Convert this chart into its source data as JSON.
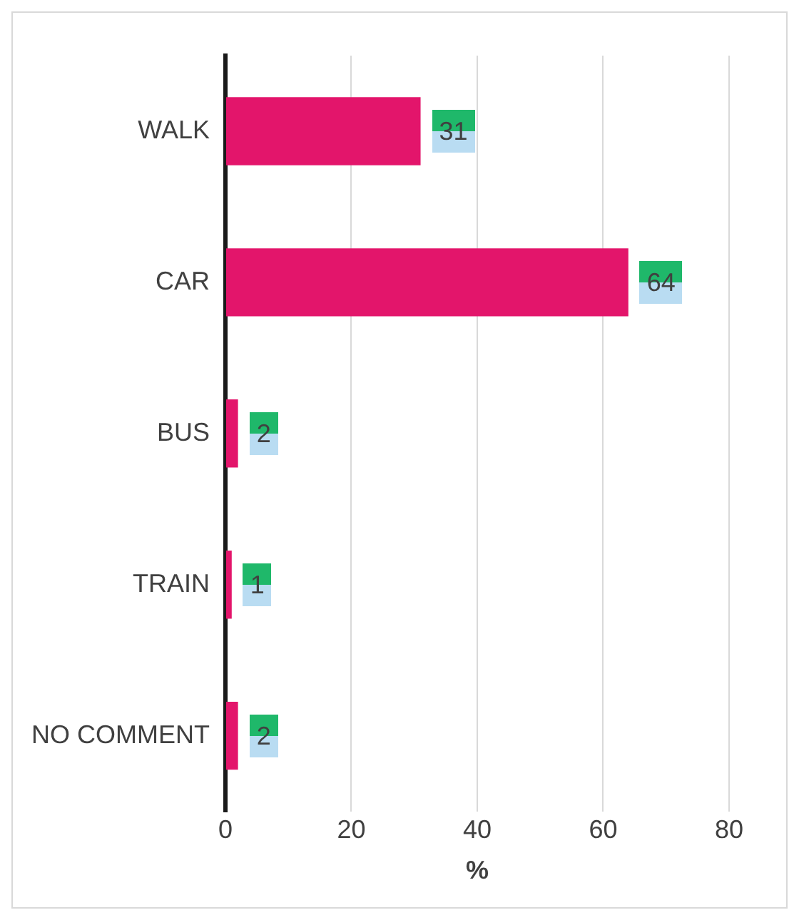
{
  "chart_data": {
    "type": "bar",
    "orientation": "horizontal",
    "categories": [
      "WALK",
      "CAR",
      "BUS",
      "TRAIN",
      "NO COMMENT"
    ],
    "values": [
      31,
      64,
      2,
      1,
      2
    ],
    "color": "#e3156b",
    "xlim": [
      0,
      80
    ],
    "xticks": [
      0,
      20,
      40,
      60,
      80
    ],
    "xlabel": "%",
    "grid": "x",
    "legend": false,
    "data_labels": true
  }
}
